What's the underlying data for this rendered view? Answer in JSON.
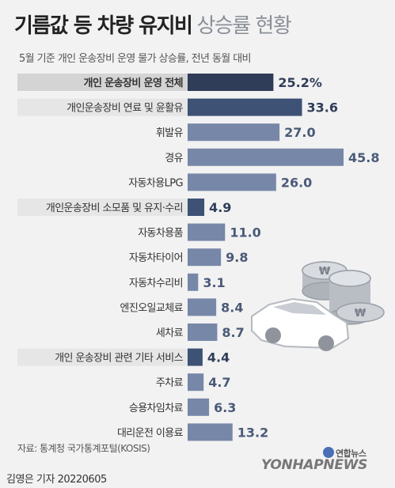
{
  "header": {
    "title_main": "기름값 등 차량 유지비",
    "title_sub": "상승률 현황",
    "subtitle": "5월 기준 개인 운송장비 운영 물가 상승률, 전년 동월 대비"
  },
  "footer": {
    "source": "자료: 통계청 국가통계포털(KOSIS)",
    "byline": "김영은 기자  20220605",
    "logo_kr": "연합뉴스",
    "logo_en": "YONHAPNEWS"
  },
  "colors": {
    "total_bar": "#2f3d59",
    "group_bar": "#3e5276",
    "item_bar": "#7787a8",
    "highlight_box": "#d4d4d4",
    "group_box": "#e6e6e6",
    "background": "#f2f2f2"
  },
  "chart_data": {
    "type": "bar",
    "orientation": "horizontal",
    "unit": "%",
    "categories": [
      "개인 운송장비 운영 전체",
      "개인운송장비 연료 및 윤활유",
      "휘발유",
      "경유",
      "자동차용LPG",
      "개인운송장비 소모품 및 유지·수리",
      "자동차용품",
      "자동차타이어",
      "자동차수리비",
      "엔진오일교체료",
      "세차료",
      "개인 운송장비 관련 기타 서비스",
      "주차료",
      "승용차임차료",
      "대리운전 이용료"
    ],
    "labels": [
      "25.2%",
      "33.6",
      "27.0",
      "45.8",
      "26.0",
      "4.9",
      "11.0",
      "9.8",
      "3.1",
      "8.4",
      "8.7",
      "4.4",
      "4.7",
      "6.3",
      "13.2"
    ],
    "values": [
      25.2,
      33.6,
      27.0,
      45.8,
      26.0,
      4.9,
      11.0,
      9.8,
      3.1,
      8.4,
      8.7,
      4.4,
      4.7,
      6.3,
      13.2
    ],
    "levels": [
      "total",
      "group",
      "item",
      "item",
      "item",
      "group",
      "item",
      "item",
      "item",
      "item",
      "item",
      "group",
      "item",
      "item",
      "item"
    ],
    "xlim": [
      0,
      50
    ],
    "grid": false
  }
}
